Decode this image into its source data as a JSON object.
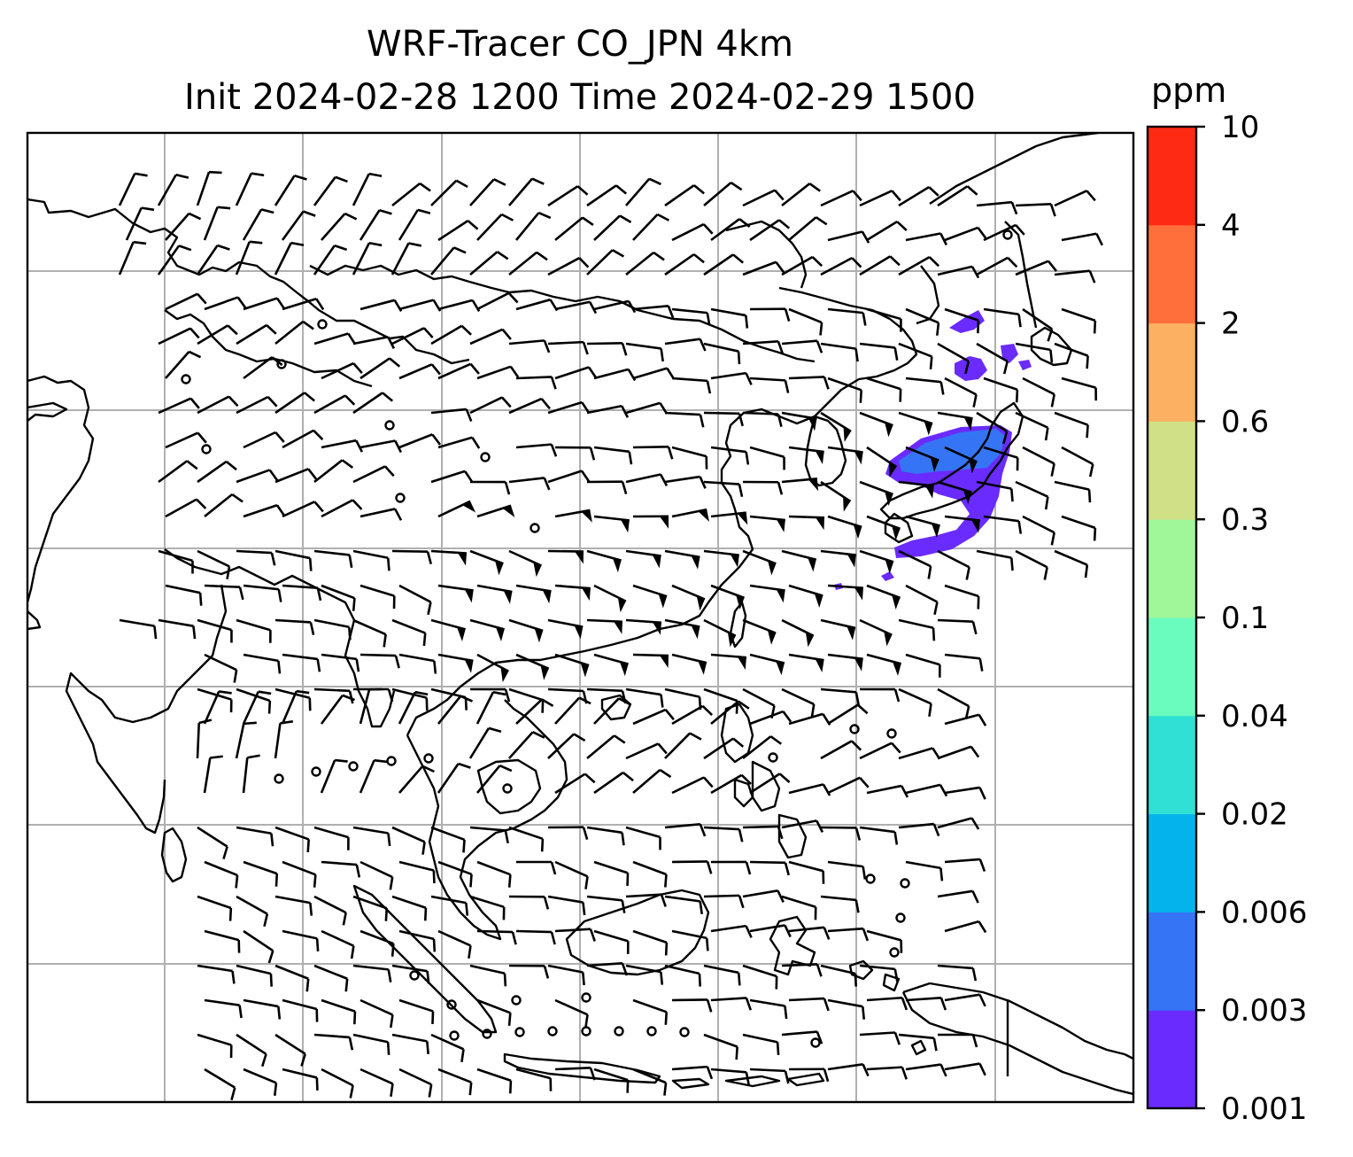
{
  "title_line1": "WRF-Tracer CO_JPN 4km",
  "title_line2": "Init 2024-02-28 1200 Time 2024-02-29 1500",
  "chart_data": {
    "type": "heatmap",
    "title": "WRF-Tracer CO_JPN 4km",
    "subtitle": "Init 2024-02-28 1200 Time 2024-02-29 1500",
    "colorbar": {
      "label": "ppm",
      "levels": [
        "0.001",
        "0.003",
        "0.006",
        "0.02",
        "0.04",
        "0.1",
        "0.3",
        "0.6",
        "2",
        "4",
        "10"
      ],
      "colors": [
        "#6a2bff",
        "#3575f5",
        "#05b3ec",
        "#30e0d4",
        "#6afbbf",
        "#a0f79a",
        "#cfe086",
        "#fcb062",
        "#ff6f3b",
        "#ff2a14"
      ]
    },
    "features": [
      "coastlines",
      "lat-lon gridlines",
      "wind barbs"
    ],
    "tracer_plume_region": "off the coast of Japan",
    "grid": true
  }
}
